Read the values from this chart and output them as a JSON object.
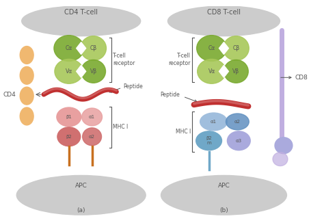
{
  "bg_color": "#ffffff",
  "text_color": "#555555",
  "title_left": "CD4 T-cell",
  "title_right": "CD8 T-cell",
  "label_a": "(a)",
  "label_b": "(b)",
  "apc_color": "#cccccc",
  "tcell_color": "#cccccc",
  "tcr_green_dark": "#7aaa30",
  "tcr_green_light": "#a8c85a",
  "peptide_red": "#c03030",
  "peptide_red_light": "#dd8888",
  "mhcII_color1": "#e8a0a0",
  "mhcII_color2": "#d07070",
  "cd4_color": "#f0b870",
  "mhcI_blue_light": "#a0bedd",
  "mhcI_blue_dark": "#6090c0",
  "mhcI_beta2m_color": "#70a8c8",
  "mhcI_alpha3_color": "#8888cc",
  "mhcI_alpha3_light": "#aaaadd",
  "cd8_color": "#c0aee0",
  "orange_stem": "#c87020"
}
